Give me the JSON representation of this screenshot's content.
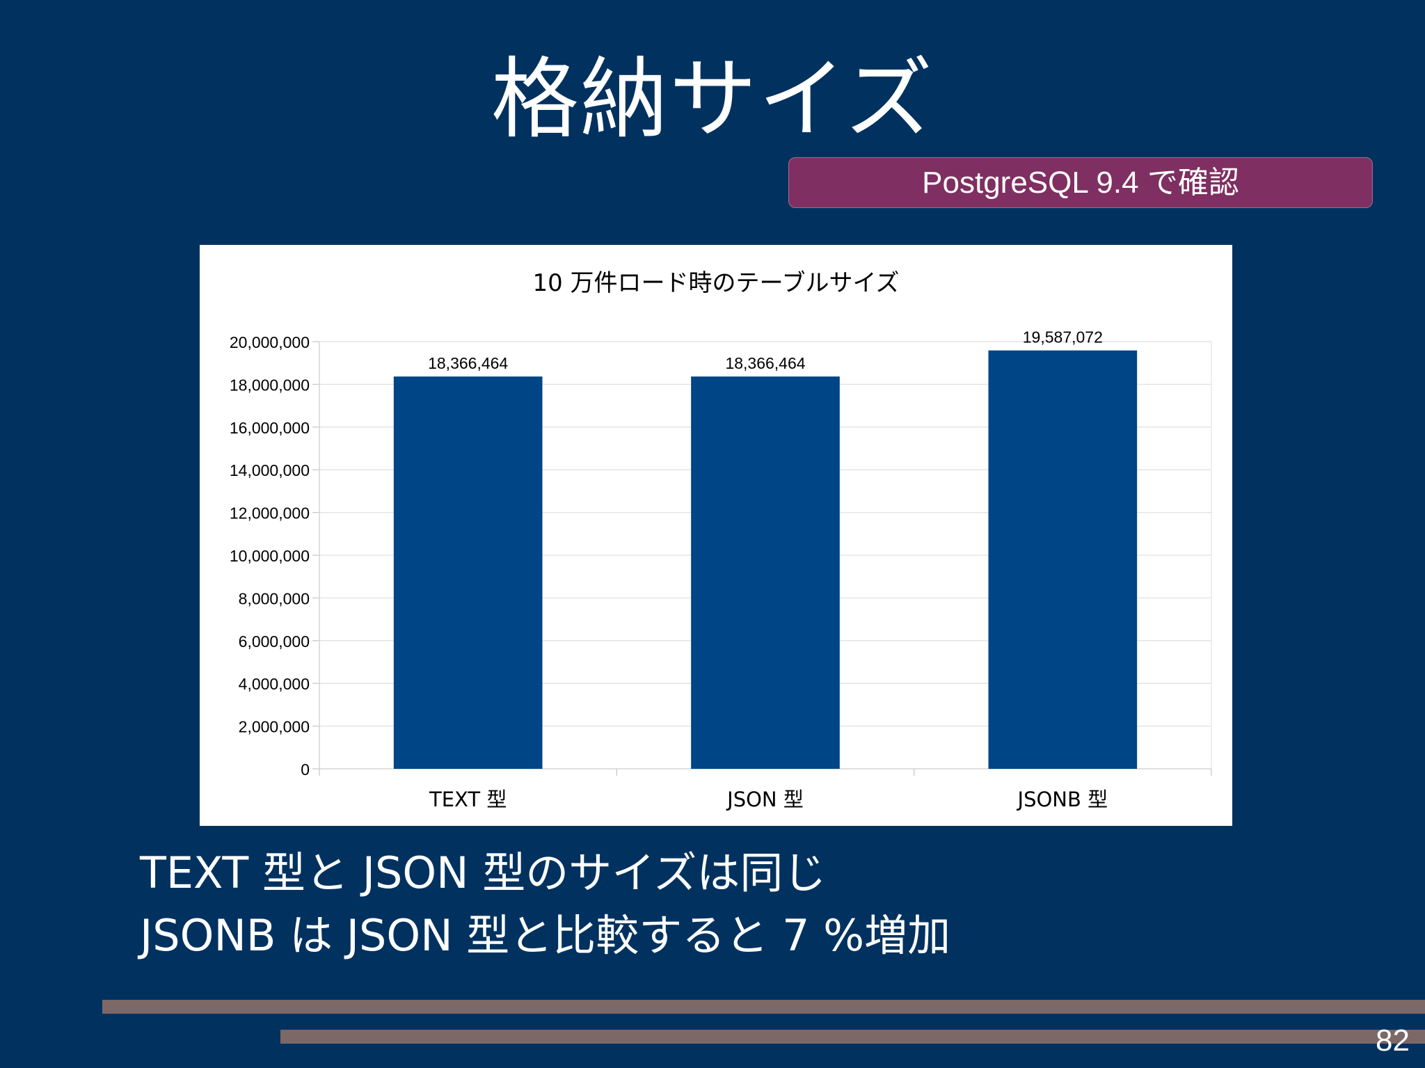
{
  "slide": {
    "title": "格納サイズ",
    "subtitle": "PostgreSQL 9.4 で確認",
    "bullets": [
      "TEXT 型と JSON 型のサイズは同じ",
      "JSONB は JSON 型と比較すると 7 %増加"
    ],
    "page_number": "82"
  },
  "chart_data": {
    "type": "bar",
    "title": "10 万件ロード時のテーブルサイズ",
    "categories": [
      "TEXT 型",
      "JSON 型",
      "JSONB 型"
    ],
    "values": [
      18366464,
      18366464,
      19587072
    ],
    "data_labels": [
      "18,366,464",
      "18,366,464",
      "19,587,072"
    ],
    "y_ticks": [
      "0",
      "2,000,000",
      "4,000,000",
      "6,000,000",
      "8,000,000",
      "10,000,000",
      "12,000,000",
      "14,000,000",
      "16,000,000",
      "18,000,000",
      "20,000,000"
    ],
    "ylim": [
      0,
      20000000
    ],
    "grid": true,
    "bar_color": "#004586"
  },
  "colors": {
    "background": "#01325f",
    "badge": "#7f2f61",
    "decor_bars": "#7e6767"
  }
}
